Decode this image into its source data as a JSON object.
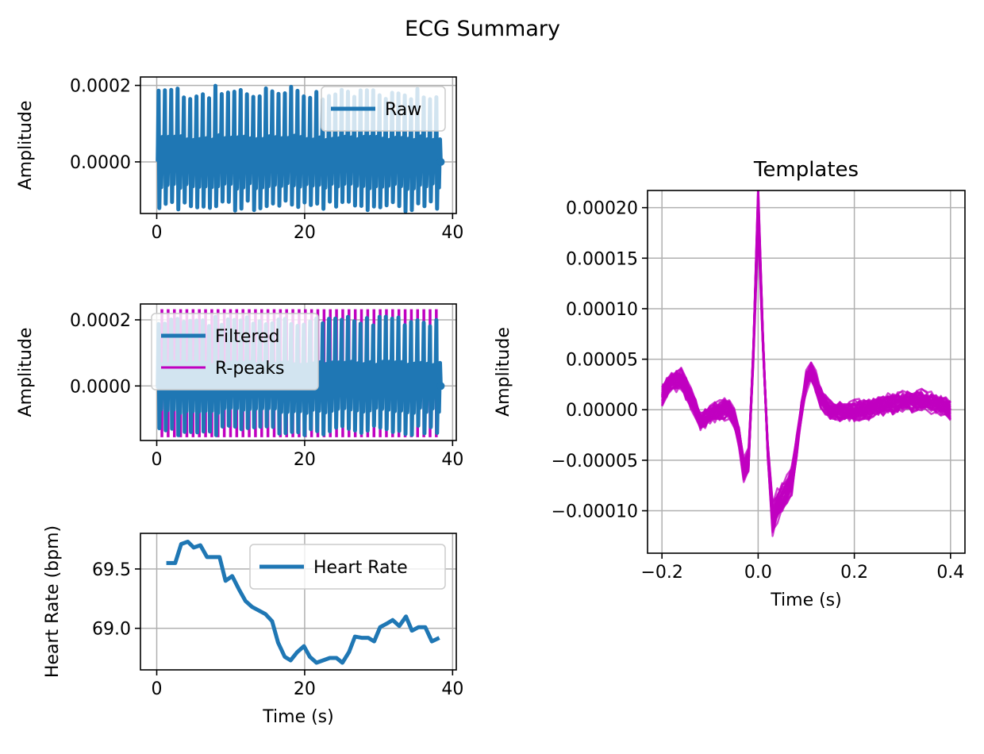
{
  "figure": {
    "suptitle": "ECG Summary",
    "colors": {
      "blue": "#1f77b4",
      "magenta": "#c000c0",
      "grid": "#b0b0b0"
    }
  },
  "chart_data": [
    {
      "id": "raw",
      "type": "line",
      "style": "dense-oscillation",
      "ylabel": "Amplitude",
      "xlabel": "",
      "xlim": [
        -2.2,
        40.5
      ],
      "ylim": [
        -0.000135,
        0.000222
      ],
      "xticks": [
        "0",
        "20",
        "40"
      ],
      "xtick_values": [
        0,
        20,
        40
      ],
      "yticks": [
        "0.0000",
        "0.0002"
      ],
      "ytick_values": [
        0,
        0.0002
      ],
      "grid": true,
      "legend": "upper right",
      "series": [
        {
          "name": "Raw",
          "color": "#1f77b4",
          "x_range": [
            0,
            38.4
          ],
          "beats": 45,
          "peak": [
            0.00016,
            0.0002
          ],
          "trough": [
            -0.00013,
            -0.0001
          ]
        }
      ]
    },
    {
      "id": "filtered",
      "type": "line",
      "style": "dense-oscillation",
      "ylabel": "Amplitude",
      "xlabel": "",
      "xlim": [
        -2.2,
        40.5
      ],
      "ylim": [
        -0.000165,
        0.000248
      ],
      "xticks": [
        "0",
        "20",
        "40"
      ],
      "xtick_values": [
        0,
        20,
        40
      ],
      "yticks": [
        "0.0000",
        "0.0002"
      ],
      "ytick_values": [
        0,
        0.0002
      ],
      "grid": true,
      "legend": "upper left",
      "series": [
        {
          "name": "Filtered",
          "color": "#1f77b4",
          "x_range": [
            0,
            38.4
          ],
          "beats": 45,
          "peak": [
            0.00018,
            0.00021
          ],
          "trough": [
            -0.00015,
            -0.00012
          ]
        },
        {
          "name": "R-peaks",
          "color": "#c000c0",
          "kind": "vlines",
          "x_range": [
            0.7,
            37.8
          ],
          "count": 45,
          "ymin": -0.000155,
          "ymax": 0.000232
        }
      ]
    },
    {
      "id": "heart-rate",
      "type": "line",
      "ylabel": "Heart Rate (bpm)",
      "xlabel": "Time (s)",
      "xlim": [
        -2.2,
        40.5
      ],
      "ylim": [
        68.65,
        69.8
      ],
      "xticks": [
        "0",
        "20",
        "40"
      ],
      "xtick_values": [
        0,
        20,
        40
      ],
      "yticks": [
        "69.0",
        "69.5"
      ],
      "ytick_values": [
        69.0,
        69.5
      ],
      "grid": true,
      "legend": "upper right",
      "series": [
        {
          "name": "Heart Rate",
          "color": "#1f77b4",
          "x": [
            1.3,
            2.5,
            3.3,
            4.2,
            5.0,
            5.9,
            6.8,
            7.6,
            8.5,
            9.3,
            10.2,
            11.1,
            12.0,
            12.9,
            13.8,
            14.7,
            15.6,
            16.4,
            17.3,
            18.1,
            19.0,
            19.9,
            20.7,
            21.6,
            22.5,
            23.4,
            24.3,
            25.1,
            26.0,
            26.8,
            27.7,
            28.6,
            29.4,
            30.2,
            31.1,
            31.9,
            32.8,
            33.7,
            34.5,
            35.4,
            36.3,
            37.2,
            38.2
          ],
          "y": [
            69.55,
            69.55,
            69.71,
            69.73,
            69.68,
            69.7,
            69.6,
            69.6,
            69.6,
            69.4,
            69.44,
            69.33,
            69.23,
            69.18,
            69.15,
            69.12,
            69.06,
            68.88,
            68.76,
            68.73,
            68.8,
            68.85,
            68.76,
            68.71,
            68.73,
            68.75,
            68.75,
            68.71,
            68.8,
            68.93,
            68.92,
            68.92,
            68.89,
            69.01,
            69.04,
            69.07,
            69.02,
            69.1,
            68.98,
            69.01,
            69.01,
            68.89,
            68.92
          ]
        }
      ]
    },
    {
      "id": "templates",
      "type": "line",
      "style": "overlaid-templates",
      "title": "Templates",
      "ylabel": "Amplitude",
      "xlabel": "Time (s)",
      "xlim": [
        -0.23,
        0.43
      ],
      "ylim": [
        -0.000142,
        0.000217
      ],
      "xticks": [
        "−0.2",
        "0.0",
        "0.2",
        "0.4"
      ],
      "xtick_values": [
        -0.2,
        0.0,
        0.2,
        0.4
      ],
      "yticks": [
        "0.00020",
        "0.00015",
        "0.00010",
        "0.00005",
        "0.00000",
        "−0.00005",
        "−0.00010"
      ],
      "ytick_values": [
        0.0002,
        0.00015,
        0.0001,
        5e-05,
        0,
        -5e-05,
        -0.0001
      ],
      "grid": true,
      "legend": "none",
      "series": [
        {
          "color": "#c000c0",
          "count": 45,
          "mean_t": [
            -0.2,
            -0.18,
            -0.16,
            -0.14,
            -0.12,
            -0.1,
            -0.08,
            -0.06,
            -0.045,
            -0.035,
            -0.025,
            -0.015,
            -0.007,
            0.0,
            0.007,
            0.015,
            0.022,
            0.03,
            0.04,
            0.055,
            0.07,
            0.085,
            0.095,
            0.105,
            0.115,
            0.13,
            0.15,
            0.18,
            0.22,
            0.26,
            0.3,
            0.34,
            0.38,
            0.4
          ],
          "mean_y": [
            1.5e-05,
            2.8e-05,
            3e-05,
            1.2e-05,
            -1e-05,
            -5e-06,
            0.0,
            2e-06,
            -1.2e-05,
            -4e-05,
            -8e-05,
            -2e-05,
            0.0001,
            0.0002,
            0.0001,
            1e-05,
            -6e-05,
            -0.00011,
            -9.5e-05,
            -8.5e-05,
            -7e-05,
            -2e-05,
            2e-05,
            4e-05,
            3.5e-05,
            1.2e-05,
            0.0,
            -2e-06,
            0.0,
            5e-06,
            8e-06,
            1e-05,
            5e-06,
            0.0
          ],
          "spread": 1.2e-05
        }
      ]
    }
  ]
}
